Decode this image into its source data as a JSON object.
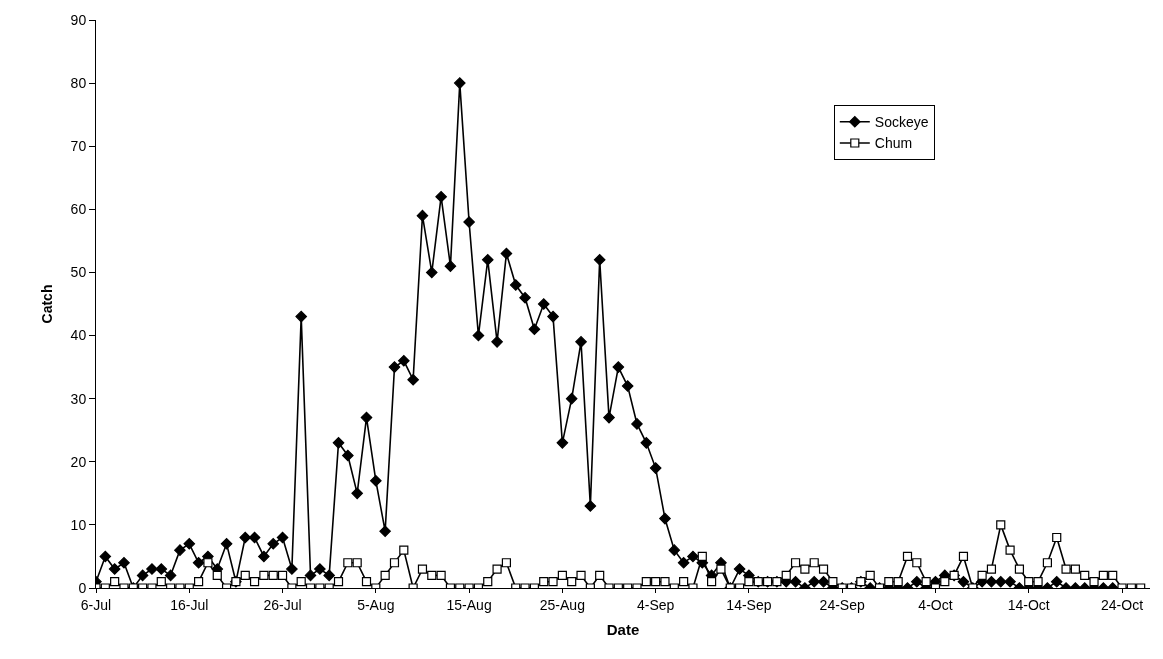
{
  "chart_data": {
    "type": "line",
    "xlabel": "Date",
    "ylabel": "Catch",
    "x": [
      "--07-06",
      "--07-07",
      "--07-08",
      "--07-09",
      "--07-10",
      "--07-11",
      "--07-12",
      "--07-13",
      "--07-14",
      "--07-15",
      "--07-16",
      "--07-17",
      "--07-18",
      "--07-19",
      "--07-20",
      "--07-21",
      "--07-22",
      "--07-23",
      "--07-24",
      "--07-25",
      "--07-26",
      "--07-27",
      "--07-28",
      "--07-29",
      "--07-30",
      "--07-31",
      "--08-01",
      "--08-02",
      "--08-03",
      "--08-04",
      "--08-05",
      "--08-06",
      "--08-07",
      "--08-08",
      "--08-09",
      "--08-10",
      "--08-11",
      "--08-12",
      "--08-13",
      "--08-14",
      "--08-15",
      "--08-16",
      "--08-17",
      "--08-18",
      "--08-19",
      "--08-20",
      "--08-21",
      "--08-22",
      "--08-23",
      "--08-24",
      "--08-25",
      "--08-26",
      "--08-27",
      "--08-28",
      "--08-29",
      "--08-30",
      "--08-31",
      "--09-01",
      "--09-02",
      "--09-03",
      "--09-04",
      "--09-05",
      "--09-06",
      "--09-07",
      "--09-08",
      "--09-09",
      "--09-10",
      "--09-11",
      "--09-12",
      "--09-13",
      "--09-14",
      "--09-15",
      "--09-16",
      "--09-17",
      "--09-18",
      "--09-19",
      "--09-20",
      "--09-21",
      "--09-22",
      "--09-23",
      "--09-24",
      "--09-25",
      "--09-26",
      "--09-27",
      "--09-28",
      "--09-29",
      "--09-30",
      "--10-01",
      "--10-02",
      "--10-03",
      "--10-04",
      "--10-05",
      "--10-06",
      "--10-07",
      "--10-08",
      "--10-09",
      "--10-10",
      "--10-11",
      "--10-12",
      "--10-13",
      "--10-14",
      "--10-15",
      "--10-16",
      "--10-17",
      "--10-18",
      "--10-19",
      "--10-20",
      "--10-21",
      "--10-22",
      "--10-23",
      "--10-24",
      "--10-25",
      "--10-26"
    ],
    "series": [
      {
        "name": "Sockeye",
        "color": "#000000",
        "marker": "diamond",
        "values": [
          1,
          5,
          3,
          4,
          0,
          2,
          3,
          3,
          2,
          6,
          7,
          4,
          5,
          3,
          7,
          1,
          8,
          8,
          5,
          7,
          8,
          3,
          43,
          2,
          3,
          2,
          23,
          21,
          15,
          27,
          17,
          9,
          35,
          36,
          33,
          59,
          50,
          62,
          51,
          80,
          58,
          40,
          52,
          39,
          53,
          48,
          46,
          41,
          45,
          43,
          23,
          30,
          39,
          13,
          52,
          27,
          35,
          32,
          26,
          23,
          19,
          11,
          6,
          4,
          5,
          4,
          2,
          4,
          0,
          3,
          2,
          1,
          1,
          1,
          1,
          1,
          0,
          1,
          1,
          0,
          0,
          0,
          1,
          0,
          0,
          0,
          0,
          0,
          1,
          0,
          1,
          2,
          2,
          1,
          0,
          1,
          1,
          1,
          1,
          0,
          0,
          0,
          0,
          1,
          0,
          0,
          0,
          0,
          0,
          0,
          null,
          null,
          null
        ]
      },
      {
        "name": "Chum",
        "color": "#000000",
        "marker": "square",
        "values": [
          0,
          0,
          1,
          0,
          0,
          0,
          0,
          1,
          0,
          0,
          0,
          1,
          4,
          2,
          0,
          1,
          2,
          1,
          2,
          2,
          2,
          0,
          1,
          0,
          0,
          0,
          1,
          4,
          4,
          1,
          0,
          2,
          4,
          6,
          0,
          3,
          2,
          2,
          0,
          0,
          0,
          0,
          1,
          3,
          4,
          0,
          0,
          0,
          1,
          1,
          2,
          1,
          2,
          0,
          2,
          0,
          0,
          0,
          0,
          1,
          1,
          1,
          0,
          1,
          0,
          5,
          1,
          3,
          0,
          0,
          1,
          1,
          1,
          1,
          2,
          4,
          3,
          4,
          3,
          1,
          0,
          0,
          1,
          2,
          0,
          1,
          1,
          5,
          4,
          1,
          0,
          1,
          2,
          5,
          0,
          2,
          3,
          10,
          6,
          3,
          1,
          1,
          4,
          8,
          3,
          3,
          2,
          1,
          2,
          2,
          0,
          0,
          0
        ]
      }
    ],
    "xlim": [
      "--07-06",
      "--10-27"
    ],
    "xticks": [
      {
        "value": "--07-06",
        "label": "6-Jul"
      },
      {
        "value": "--07-16",
        "label": "16-Jul"
      },
      {
        "value": "--07-26",
        "label": "26-Jul"
      },
      {
        "value": "--08-05",
        "label": "5-Aug"
      },
      {
        "value": "--08-15",
        "label": "15-Aug"
      },
      {
        "value": "--08-25",
        "label": "25-Aug"
      },
      {
        "value": "--09-04",
        "label": "4-Sep"
      },
      {
        "value": "--09-14",
        "label": "14-Sep"
      },
      {
        "value": "--09-24",
        "label": "24-Sep"
      },
      {
        "value": "--10-04",
        "label": "4-Oct"
      },
      {
        "value": "--10-14",
        "label": "14-Oct"
      },
      {
        "value": "--10-24",
        "label": "24-Oct"
      }
    ],
    "ylim": [
      0,
      90
    ],
    "yticks": [
      0,
      10,
      20,
      30,
      40,
      50,
      60,
      70,
      80,
      90
    ],
    "legend": "top right"
  }
}
